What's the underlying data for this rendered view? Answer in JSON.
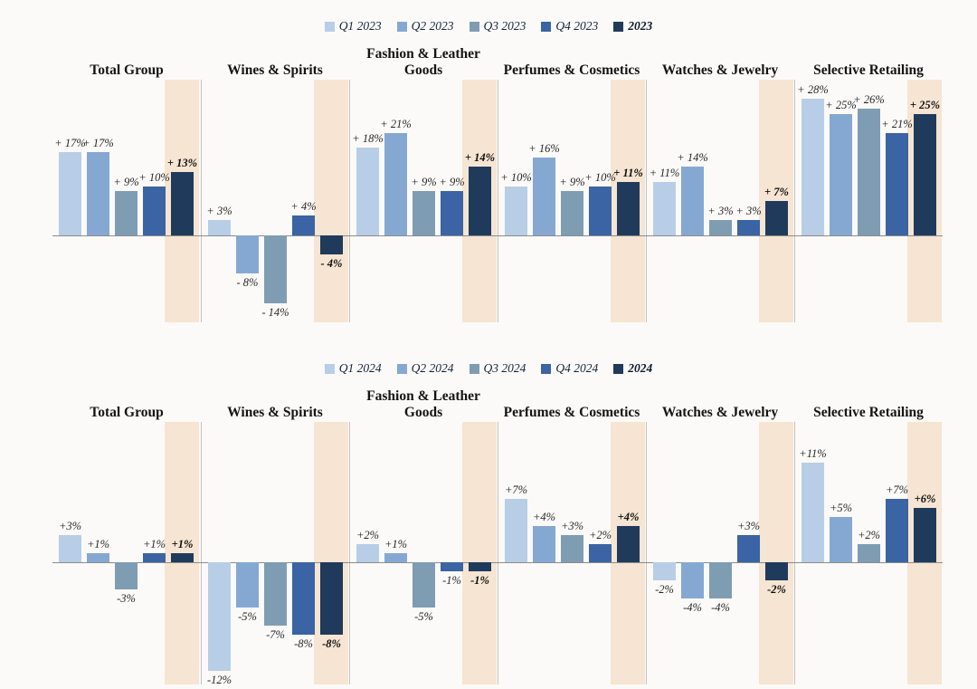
{
  "colors": {
    "q1": "#b7cee6",
    "q2": "#85a8d3",
    "q3": "#7e9db3",
    "q4": "#3a64a3",
    "year": "#203a5c",
    "band": "#f6e5d2",
    "axis": "#8c8c8c",
    "separator": "#c2c2c2"
  },
  "chart_data": [
    {
      "type": "bar",
      "title": "",
      "legend_position": "top-center",
      "grid": false,
      "ylim": [
        -18,
        32
      ],
      "categories": [
        "Total Group",
        "Wines & Spirits",
        "Fashion & Leather Goods",
        "Perfumes & Cosmetics",
        "Watches & Jewelry",
        "Selective Retailing"
      ],
      "series": [
        {
          "name": "Q1 2023",
          "values": [
            17,
            3,
            18,
            10,
            11,
            28
          ],
          "labels": [
            "+ 17%",
            "+ 3%",
            "+ 18%",
            "+ 10%",
            "+ 11%",
            "+ 28%"
          ]
        },
        {
          "name": "Q2 2023",
          "values": [
            17,
            -8,
            21,
            16,
            14,
            25
          ],
          "labels": [
            "+ 17%",
            "- 8%",
            "+ 21%",
            "+ 16%",
            "+ 14%",
            "+ 25%"
          ]
        },
        {
          "name": "Q3 2023",
          "values": [
            9,
            -14,
            9,
            9,
            3,
            26
          ],
          "labels": [
            "+ 9%",
            "- 14%",
            "+ 9%",
            "+ 9%",
            "+ 3%",
            "+ 26%"
          ]
        },
        {
          "name": "Q4 2023",
          "values": [
            10,
            4,
            9,
            10,
            3,
            21
          ],
          "labels": [
            "+ 10%",
            "+ 4%",
            "+ 9%",
            "+ 10%",
            "+ 3%",
            "+ 21%"
          ]
        },
        {
          "name": "2023",
          "is_total": true,
          "values": [
            13,
            -4,
            14,
            11,
            7,
            25
          ],
          "labels": [
            "+ 13%",
            "- 4%",
            "+ 14%",
            "+ 11%",
            "+ 7%",
            "+ 25%"
          ]
        }
      ]
    },
    {
      "type": "bar",
      "title": "",
      "legend_position": "top-center",
      "grid": false,
      "ylim": [
        -13.5,
        15.5
      ],
      "categories": [
        "Total Group",
        "Wines & Spirits",
        "Fashion & Leather Goods",
        "Perfumes & Cosmetics",
        "Watches & Jewelry",
        "Selective Retailing"
      ],
      "series": [
        {
          "name": "Q1 2024",
          "values": [
            3,
            -12,
            2,
            7,
            -2,
            11
          ],
          "labels": [
            "+3%",
            "-12%",
            "+2%",
            "+7%",
            "-2%",
            "+11%"
          ]
        },
        {
          "name": "Q2 2024",
          "values": [
            1,
            -5,
            1,
            4,
            -4,
            5
          ],
          "labels": [
            "+1%",
            "-5%",
            "+1%",
            "+4%",
            "-4%",
            "+5%"
          ]
        },
        {
          "name": "Q3 2024",
          "values": [
            -3,
            -7,
            -5,
            3,
            -4,
            2
          ],
          "labels": [
            "-3%",
            "-7%",
            "-5%",
            "+3%",
            "-4%",
            "+2%"
          ]
        },
        {
          "name": "Q4 2024",
          "values": [
            1,
            -8,
            -1,
            2,
            3,
            7
          ],
          "labels": [
            "+1%",
            "-8%",
            "-1%",
            "+2%",
            "+3%",
            "+7%"
          ]
        },
        {
          "name": "2024",
          "is_total": true,
          "values": [
            1,
            -8,
            -1,
            4,
            -2,
            6
          ],
          "labels": [
            "+1%",
            "-8%",
            "-1%",
            "+4%",
            "-2%",
            "+6%"
          ]
        }
      ]
    }
  ]
}
